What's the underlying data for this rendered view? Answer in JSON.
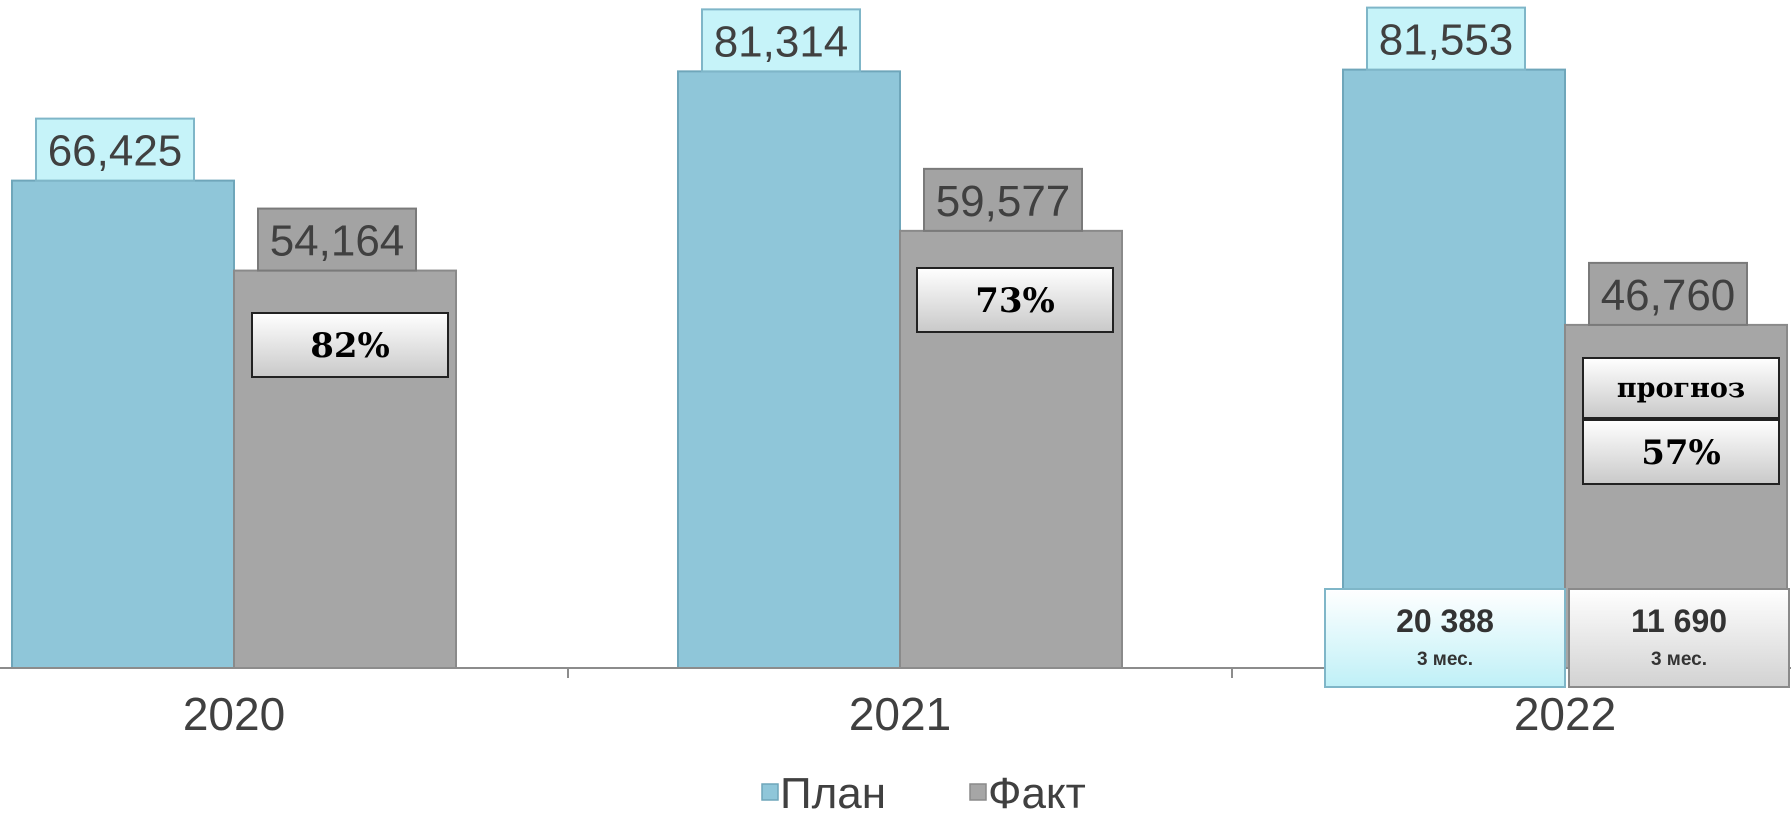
{
  "chart_data": {
    "type": "bar",
    "categories": [
      "2020",
      "2021",
      "2022"
    ],
    "series": [
      {
        "name": "План",
        "values": [
          66.425,
          81.314,
          81.553
        ],
        "labels": [
          "66,425",
          "81,314",
          "81,553"
        ],
        "color": "#8fc6d9"
      },
      {
        "name": "Факт",
        "values": [
          54.164,
          59.577,
          46.76
        ],
        "labels": [
          "54,164",
          "59,577",
          "46,760"
        ],
        "color": "#a6a6a6"
      }
    ],
    "annotations": {
      "percent": [
        "82%",
        "73%",
        "57%"
      ],
      "forecast": "прогноз",
      "quarter_plan": {
        "value": "20 388",
        "period": "3 мес."
      },
      "quarter_fact": {
        "value": "11 690",
        "period": "3 мес."
      }
    },
    "legend": {
      "position": "bottom",
      "entries": [
        "План",
        "Факт"
      ]
    },
    "grid": false,
    "ylim": [
      0,
      100
    ]
  }
}
